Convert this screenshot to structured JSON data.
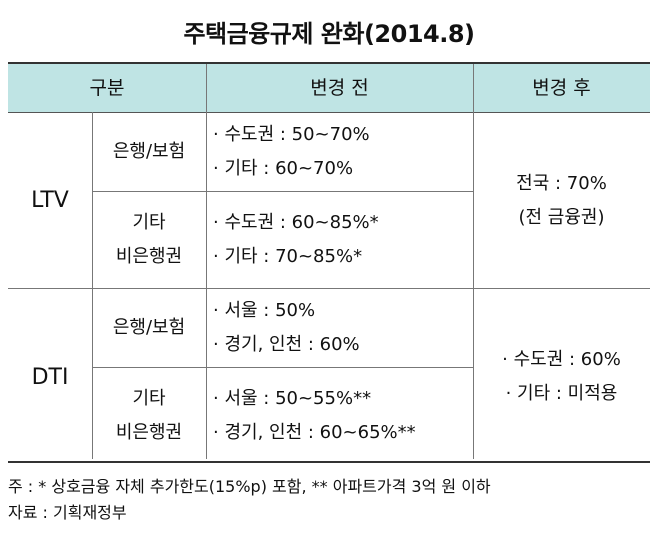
{
  "title": "주택금융규제 완화(2014.8)",
  "headers": {
    "category": "구분",
    "before": "변경 전",
    "after": "변경 후"
  },
  "rows": {
    "ltv": {
      "label": "LTV",
      "bank": {
        "name": "은행/보험",
        "items": [
          "· 수도권 : 50~70%",
          "· 기타 : 60~70%"
        ]
      },
      "nonbank": {
        "name1": "기타",
        "name2": "비은행권",
        "items": [
          "· 수도권 : 60~85%*",
          "· 기타 : 70~85%*"
        ]
      },
      "after": [
        "전국 : 70%",
        "(전 금융권)"
      ]
    },
    "dti": {
      "label": "DTI",
      "bank": {
        "name": "은행/보험",
        "items": [
          "· 서울 : 50%",
          "· 경기, 인천 : 60%"
        ]
      },
      "nonbank": {
        "name1": "기타",
        "name2": "비은행권",
        "items": [
          "· 서울 : 50~55%**",
          "· 경기, 인천 : 60~65%**"
        ]
      },
      "after": [
        "· 수도권 : 60%",
        "· 기타 : 미적용"
      ]
    }
  },
  "notes": [
    "주 : * 상호금융 자체 추가한도(15%p) 포함, ** 아파트가격 3억 원 이하",
    "자료 : 기획재정부"
  ]
}
